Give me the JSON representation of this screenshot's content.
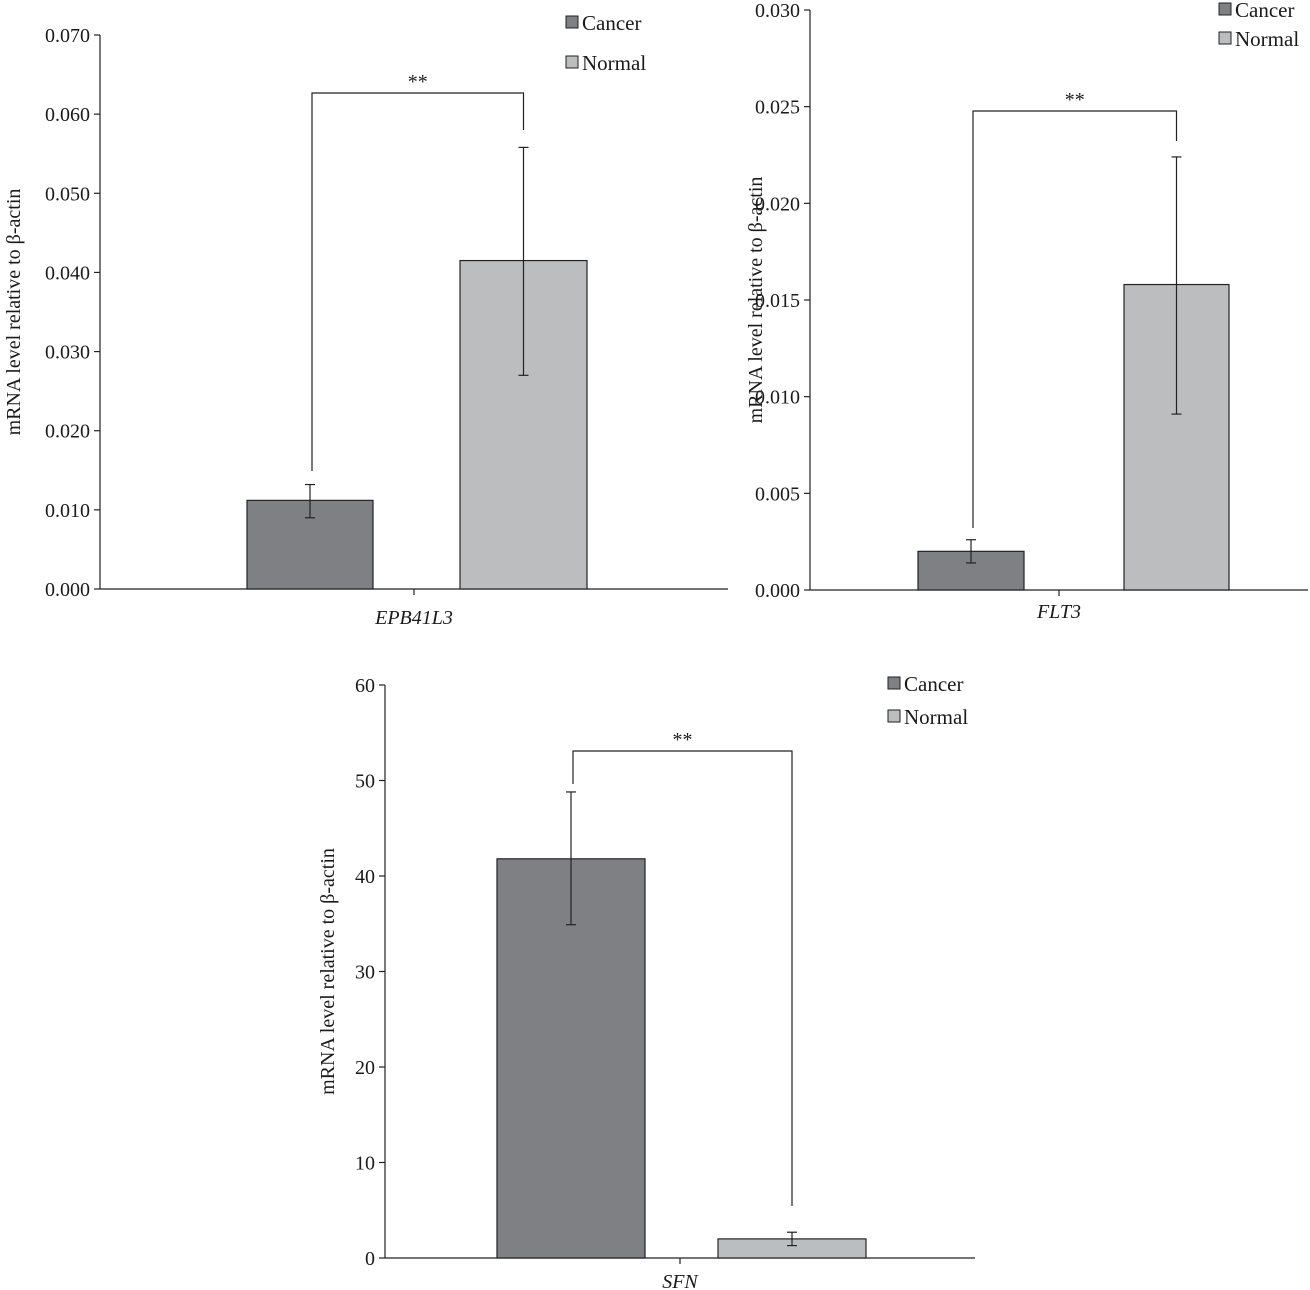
{
  "chart_data": [
    {
      "type": "bar",
      "categories": [
        "EPB41L3"
      ],
      "xlabel": "EPB41L3",
      "ylabel": "mRNA level relative to β-actin",
      "ylim": [
        0,
        0.07
      ],
      "yticks": [
        "0.000",
        "0.010",
        "0.020",
        "0.030",
        "0.040",
        "0.050",
        "0.060",
        "0.070"
      ],
      "series": [
        {
          "name": "Cancer",
          "values": [
            0.0112
          ],
          "error_low": [
            0.009
          ],
          "error_high": [
            0.0132
          ],
          "color": "#7f8084"
        },
        {
          "name": "Normal",
          "values": [
            0.0415
          ],
          "error_low": [
            0.027
          ],
          "error_high": [
            0.0558
          ],
          "color": "#bcbdbf"
        }
      ],
      "significance": "**",
      "legend": "top-right",
      "grid": false
    },
    {
      "type": "bar",
      "categories": [
        "FLT3"
      ],
      "xlabel": "FLT3",
      "ylabel": "mRNA level relative to β-actin",
      "ylim": [
        0,
        0.03
      ],
      "yticks": [
        "0.000",
        "0.005",
        "0.010",
        "0.015",
        "0.020",
        "0.025",
        "0.030"
      ],
      "series": [
        {
          "name": "Cancer",
          "values": [
            0.002
          ],
          "error_low": [
            0.0014
          ],
          "error_high": [
            0.0026
          ],
          "color": "#7f8084"
        },
        {
          "name": "Normal",
          "values": [
            0.0158
          ],
          "error_low": [
            0.0091
          ],
          "error_high": [
            0.0224
          ],
          "color": "#bcbdbf"
        }
      ],
      "significance": "**",
      "legend": "top-right",
      "grid": false
    },
    {
      "type": "bar",
      "categories": [
        "SFN"
      ],
      "xlabel": "SFN",
      "ylabel": "mRNA level relative to β-actin",
      "ylim": [
        0,
        60
      ],
      "yticks": [
        "0",
        "10",
        "20",
        "30",
        "40",
        "50",
        "60"
      ],
      "series": [
        {
          "name": "Cancer",
          "values": [
            41.8
          ],
          "error_low": [
            34.9
          ],
          "error_high": [
            48.8
          ],
          "color": "#7f8084"
        },
        {
          "name": "Normal",
          "values": [
            2.0
          ],
          "error_low": [
            1.3
          ],
          "error_high": [
            2.7
          ],
          "color": "#bcbdbf"
        }
      ],
      "significance": "**",
      "legend": "top-right",
      "grid": false
    }
  ]
}
